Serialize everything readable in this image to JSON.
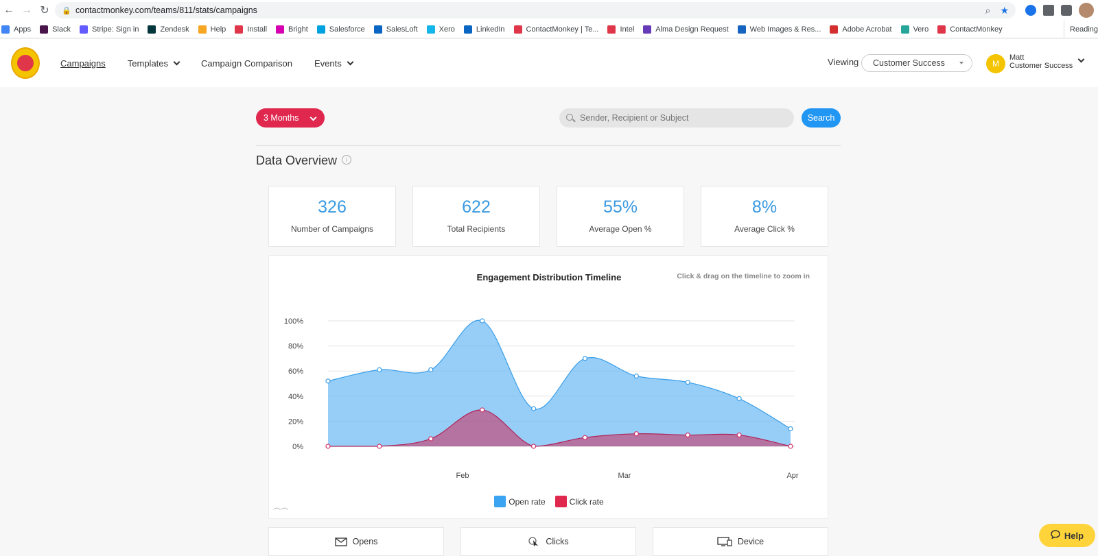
{
  "browser": {
    "url": "contactmonkey.com/teams/811/stats/campaigns",
    "bookmarks": [
      {
        "label": "Apps",
        "color": "#4285f4"
      },
      {
        "label": "Slack",
        "color": "#4a154b"
      },
      {
        "label": "Stripe: Sign in",
        "color": "#635bff"
      },
      {
        "label": "Zendesk",
        "color": "#03363d"
      },
      {
        "label": "Help",
        "color": "#f5a623"
      },
      {
        "label": "Install",
        "color": "#e0364a"
      },
      {
        "label": "Bright",
        "color": "#d600b2"
      },
      {
        "label": "Salesforce",
        "color": "#00a1e0"
      },
      {
        "label": "SalesLoft",
        "color": "#0a66c2"
      },
      {
        "label": "Xero",
        "color": "#13b5ea"
      },
      {
        "label": "LinkedIn",
        "color": "#0a66c2"
      },
      {
        "label": "ContactMonkey | Te...",
        "color": "#e0364a"
      },
      {
        "label": "Intel",
        "color": "#e0364a"
      },
      {
        "label": "Alma Design Request",
        "color": "#673ab7"
      },
      {
        "label": "Web Images & Res...",
        "color": "#1565c0"
      },
      {
        "label": "Adobe Acrobat",
        "color": "#d32f2f"
      },
      {
        "label": "Vero",
        "color": "#26a69a"
      },
      {
        "label": "ContactMonkey",
        "color": "#e0364a"
      }
    ],
    "reading_list": "Reading"
  },
  "header": {
    "nav": {
      "campaigns": "Campaigns",
      "templates": "Templates",
      "campaign_comparison": "Campaign Comparison",
      "events": "Events"
    },
    "viewing_label": "Viewing",
    "viewing_value": "Customer Success",
    "user": {
      "initial": "M",
      "name": "Matt",
      "team": "Customer Success"
    }
  },
  "filters": {
    "period": "3 Months",
    "search_placeholder": "Sender, Recipient or Subject",
    "search_button": "Search"
  },
  "overview": {
    "title": "Data Overview",
    "stats": [
      {
        "value": "326",
        "label": "Number of Campaigns"
      },
      {
        "value": "622",
        "label": "Total Recipients"
      },
      {
        "value": "55%",
        "label": "Average Open %"
      },
      {
        "value": "8%",
        "label": "Average Click %"
      }
    ]
  },
  "chart_hint": "Click & drag on the timeline to zoom in",
  "chart_data": {
    "type": "area",
    "title": "Engagement Distribution Timeline",
    "x_labels": [
      "Feb",
      "Mar",
      "Apr"
    ],
    "y_ticks": [
      "0%",
      "20%",
      "40%",
      "60%",
      "80%",
      "100%"
    ],
    "ylim": [
      0,
      100
    ],
    "series": [
      {
        "name": "Open rate",
        "color": "#3aa3f2",
        "values": [
          52,
          61,
          61,
          100,
          30,
          70,
          56,
          51,
          38,
          14
        ]
      },
      {
        "name": "Click rate",
        "color": "#e0284f",
        "values": [
          0,
          0,
          6,
          29,
          0,
          7,
          10,
          9,
          9,
          0
        ]
      }
    ],
    "legend": "bottom"
  },
  "tabs": [
    {
      "label": "Opens"
    },
    {
      "label": "Clicks"
    },
    {
      "label": "Device"
    }
  ],
  "help_label": "Help"
}
